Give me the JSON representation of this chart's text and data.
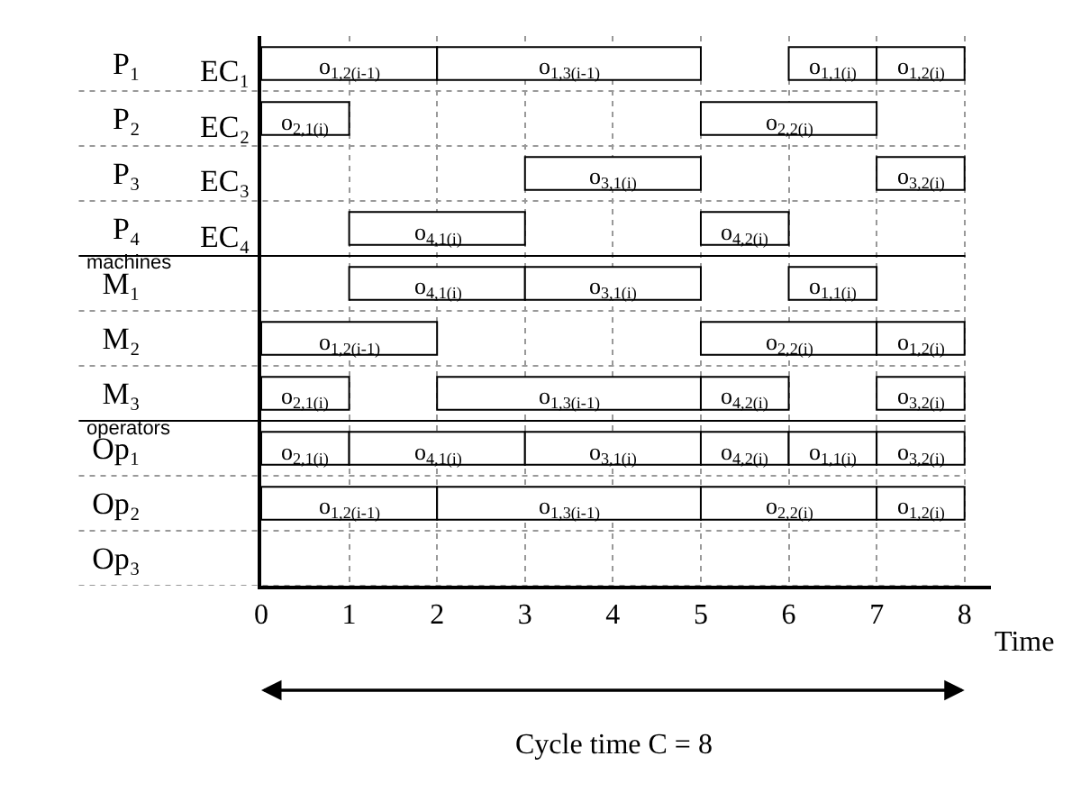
{
  "chart_data": {
    "type": "bar",
    "orientation": "horizontal",
    "xlabel": "Time",
    "categories": [
      "P₁",
      "P₂",
      "P₃",
      "P₄",
      "M₁",
      "M₂",
      "M₃",
      "Op₁",
      "Op₂",
      "Op₃"
    ],
    "y2_categories": [
      "EC₁",
      "EC₂",
      "EC₃",
      "EC₄",
      null,
      null,
      null,
      null,
      null,
      null
    ],
    "series": [
      {
        "color": "#ffffff",
        "base": [
          0,
          0,
          3,
          1,
          1,
          0,
          0,
          0,
          0,
          null
        ],
        "values": [
          2,
          1,
          2,
          2,
          2,
          2,
          1,
          1,
          2,
          null
        ]
      },
      {
        "color": "#ffffff",
        "base": [
          2,
          5,
          7,
          5,
          3,
          5,
          2,
          1,
          2,
          null
        ],
        "values": [
          3,
          2,
          1,
          1,
          2,
          2,
          3,
          2,
          3,
          null
        ]
      },
      {
        "color": "#ffffff",
        "base": [
          6,
          null,
          null,
          null,
          6,
          7,
          5,
          3,
          5,
          null
        ],
        "values": [
          1,
          null,
          null,
          null,
          1,
          1,
          1,
          2,
          2,
          null
        ]
      },
      {
        "color": "#ffffff",
        "base": [
          7,
          null,
          null,
          null,
          null,
          null,
          7,
          5,
          7,
          null
        ],
        "values": [
          1,
          null,
          null,
          null,
          null,
          null,
          1,
          1,
          1,
          null
        ]
      },
      {
        "color": "#ffffff",
        "base": [
          null,
          null,
          null,
          null,
          null,
          null,
          null,
          6,
          null,
          null
        ],
        "values": [
          null,
          null,
          null,
          null,
          null,
          null,
          null,
          1,
          null,
          null
        ]
      },
      {
        "color": "#ffffff",
        "base": [
          null,
          null,
          null,
          null,
          null,
          null,
          null,
          7,
          null,
          null
        ],
        "values": [
          null,
          null,
          null,
          null,
          null,
          null,
          null,
          1,
          null,
          null
        ]
      }
    ],
    "xlim": [
      0,
      8.3
    ],
    "xticks": [
      0,
      1,
      2,
      3,
      4,
      5,
      6,
      7,
      8
    ],
    "grid": true,
    "annotations": [
      "machines",
      "operators",
      "Cycle time C = 8",
      {
        "text": "o$_{1,2(i-1)}$",
        "x": 1,
        "y": "P₁"
      },
      {
        "text": "o$_{1,3(i-1)}$",
        "x": 3.5,
        "y": "P₁"
      },
      {
        "text": "o$_{1,1(i)}$",
        "x": 6.5,
        "y": "P₁"
      },
      {
        "text": "o$_{1,2(i)}$",
        "x": 7.5,
        "y": "P₁"
      },
      {
        "text": "o$_{2,1(i)}$",
        "x": 0.5,
        "y": "P₂"
      },
      {
        "text": "o$_{2,2(i)}$",
        "x": 6,
        "y": "P₂"
      },
      {
        "text": "o$_{3,1(i)}$",
        "x": 4,
        "y": "P₃"
      },
      {
        "text": "o$_{3,2(i)}$",
        "x": 7.5,
        "y": "P₃"
      },
      {
        "text": "o$_{4,1(i)}$",
        "x": 2,
        "y": "P₄"
      },
      {
        "text": "o$_{4,2(i)}$",
        "x": 5.5,
        "y": "P₄"
      },
      {
        "text": "o$_{4,1(i)}$",
        "x": 2,
        "y": "M₁"
      },
      {
        "text": "o$_{3,1(i)}$",
        "x": 4,
        "y": "M₁"
      },
      {
        "text": "o$_{1,1(i)}$",
        "x": 6.5,
        "y": "M₁"
      },
      {
        "text": "o$_{1,2(i-1)}$",
        "x": 1,
        "y": "M₂"
      },
      {
        "text": "o$_{2,2(i)}$",
        "x": 6,
        "y": "M₂"
      },
      {
        "text": "o$_{1,2(i)}$",
        "x": 7.5,
        "y": "M₂"
      },
      {
        "text": "o$_{2,1(i)}$",
        "x": 0.5,
        "y": "M₃"
      },
      {
        "text": "o$_{1,3(i-1)}$",
        "x": 3.5,
        "y": "M₃"
      },
      {
        "text": "o$_{4,2(i)}$",
        "x": 5.5,
        "y": "M₃"
      },
      {
        "text": "o$_{3,2(i)}$",
        "x": 7.5,
        "y": "M₃"
      },
      {
        "text": "o$_{2,1(i)}$",
        "x": 0.5,
        "y": "Op₁"
      },
      {
        "text": "o$_{4,1(i)}$",
        "x": 2,
        "y": "Op₁"
      },
      {
        "text": "o$_{3,1(i)}$",
        "x": 4,
        "y": "Op₁"
      },
      {
        "text": "o$_{4,2(i)}$",
        "x": 5.5,
        "y": "Op₁"
      },
      {
        "text": "o$_{1,1(i)}$",
        "x": 6.5,
        "y": "Op₁"
      },
      {
        "text": "o$_{3,2(i)}$",
        "x": 7.5,
        "y": "Op₁"
      },
      {
        "text": "o$_{1,2(i-1)}$",
        "x": 1,
        "y": "Op₂"
      },
      {
        "text": "o$_{1,3(i-1)}$",
        "x": 3.5,
        "y": "Op₂"
      },
      {
        "text": "o$_{2,2(i)}$",
        "x": 6,
        "y": "Op₂"
      },
      {
        "text": "o$_{1,2(i)}$",
        "x": 7.5,
        "y": "Op₂"
      }
    ]
  }
}
